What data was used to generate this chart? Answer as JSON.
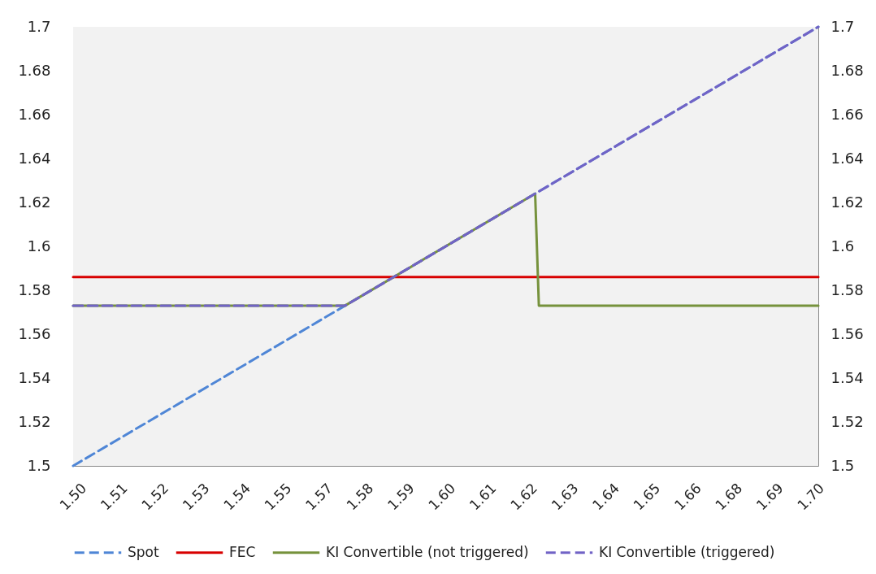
{
  "chart_data": {
    "type": "line",
    "xlim": [
      1.5,
      1.7
    ],
    "xticks": [
      {
        "value": 1.5,
        "label": "1.50"
      },
      {
        "value": 1.511,
        "label": "1.51"
      },
      {
        "value": 1.522,
        "label": "1.52"
      },
      {
        "value": 1.533,
        "label": "1.53"
      },
      {
        "value": 1.544,
        "label": "1.54"
      },
      {
        "value": 1.555,
        "label": "1.55"
      },
      {
        "value": 1.566,
        "label": "1.57"
      },
      {
        "value": 1.577,
        "label": "1.58"
      },
      {
        "value": 1.588,
        "label": "1.59"
      },
      {
        "value": 1.599,
        "label": "1.60"
      },
      1.61,
      {
        "value": 1.621,
        "label": "1.62"
      },
      {
        "value": 1.632,
        "label": "1.63"
      },
      {
        "value": 1.643,
        "label": "1.64"
      },
      {
        "value": 1.654,
        "label": "1.65"
      },
      {
        "value": 1.665,
        "label": "1.66"
      },
      {
        "value": 1.676,
        "label": "1.68"
      },
      {
        "value": 1.687,
        "label": "1.69"
      },
      {
        "value": 1.698,
        "label": "1.70"
      }
    ],
    "ylim": [
      1.5,
      1.7
    ],
    "yticks": [
      1.5,
      1.52,
      1.54,
      1.56,
      1.58,
      1.6,
      1.62,
      1.64,
      1.66,
      1.68,
      1.7
    ],
    "y2lim": [
      1.5,
      1.7
    ],
    "y2ticks": [
      1.5,
      1.52,
      1.54,
      1.56,
      1.58,
      1.6,
      1.62,
      1.64,
      1.66,
      1.68,
      1.7
    ],
    "legend": "bottom",
    "grid": false,
    "series": [
      {
        "name": "Spot",
        "color": "#4f86d6",
        "line_style": "dashed",
        "x": [
          1.5,
          1.7
        ],
        "values": [
          1.5,
          1.7
        ]
      },
      {
        "name": "FEC",
        "color": "#d80000",
        "line_style": "solid",
        "x": [
          1.5,
          1.7
        ],
        "values": [
          1.586,
          1.586
        ]
      },
      {
        "name": "KI Convertible (not triggered)",
        "color": "#76923c",
        "line_style": "solid",
        "x": [
          1.5,
          1.573,
          1.624,
          1.625,
          1.7
        ],
        "values": [
          1.573,
          1.573,
          1.624,
          1.573,
          1.573
        ]
      },
      {
        "name": "KI Convertible (triggered)",
        "color": "#7163c6",
        "line_style": "dashed",
        "axis": "y2",
        "x": [
          1.5,
          1.573,
          1.7
        ],
        "values": [
          1.573,
          1.573,
          1.7
        ]
      }
    ]
  }
}
